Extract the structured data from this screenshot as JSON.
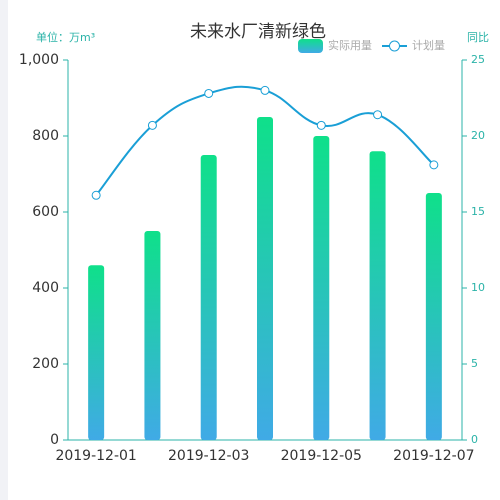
{
  "chart_data": {
    "type": "bar",
    "title": "未来水厂清新绿色",
    "y_axis_label": "单位：万m³",
    "y2_axis_label": "同比",
    "categories": [
      "2019-12-01",
      null,
      "2019-12-03",
      null,
      "2019-12-05",
      null,
      "2019-12-07"
    ],
    "series": [
      {
        "name": "实际用量",
        "type": "bar",
        "color": [
          "#0fe08a",
          "#40aae6"
        ],
        "values": [
          460,
          550,
          750,
          850,
          800,
          760,
          650
        ]
      },
      {
        "name": "计划量",
        "type": "line",
        "axis": "y2",
        "color": "#1a9fd6",
        "values": [
          16.1,
          20.7,
          22.8,
          23.0,
          20.7,
          21.4,
          18.1
        ]
      }
    ],
    "ylim": [
      0,
      1000
    ],
    "yticks": [
      0,
      200,
      400,
      600,
      800,
      {
        "value": 1000,
        "label": "1,000"
      }
    ],
    "y2lim": [
      0,
      25
    ],
    "y2ticks": [
      0,
      5,
      10,
      15,
      20,
      25
    ],
    "legend": "top-right"
  }
}
